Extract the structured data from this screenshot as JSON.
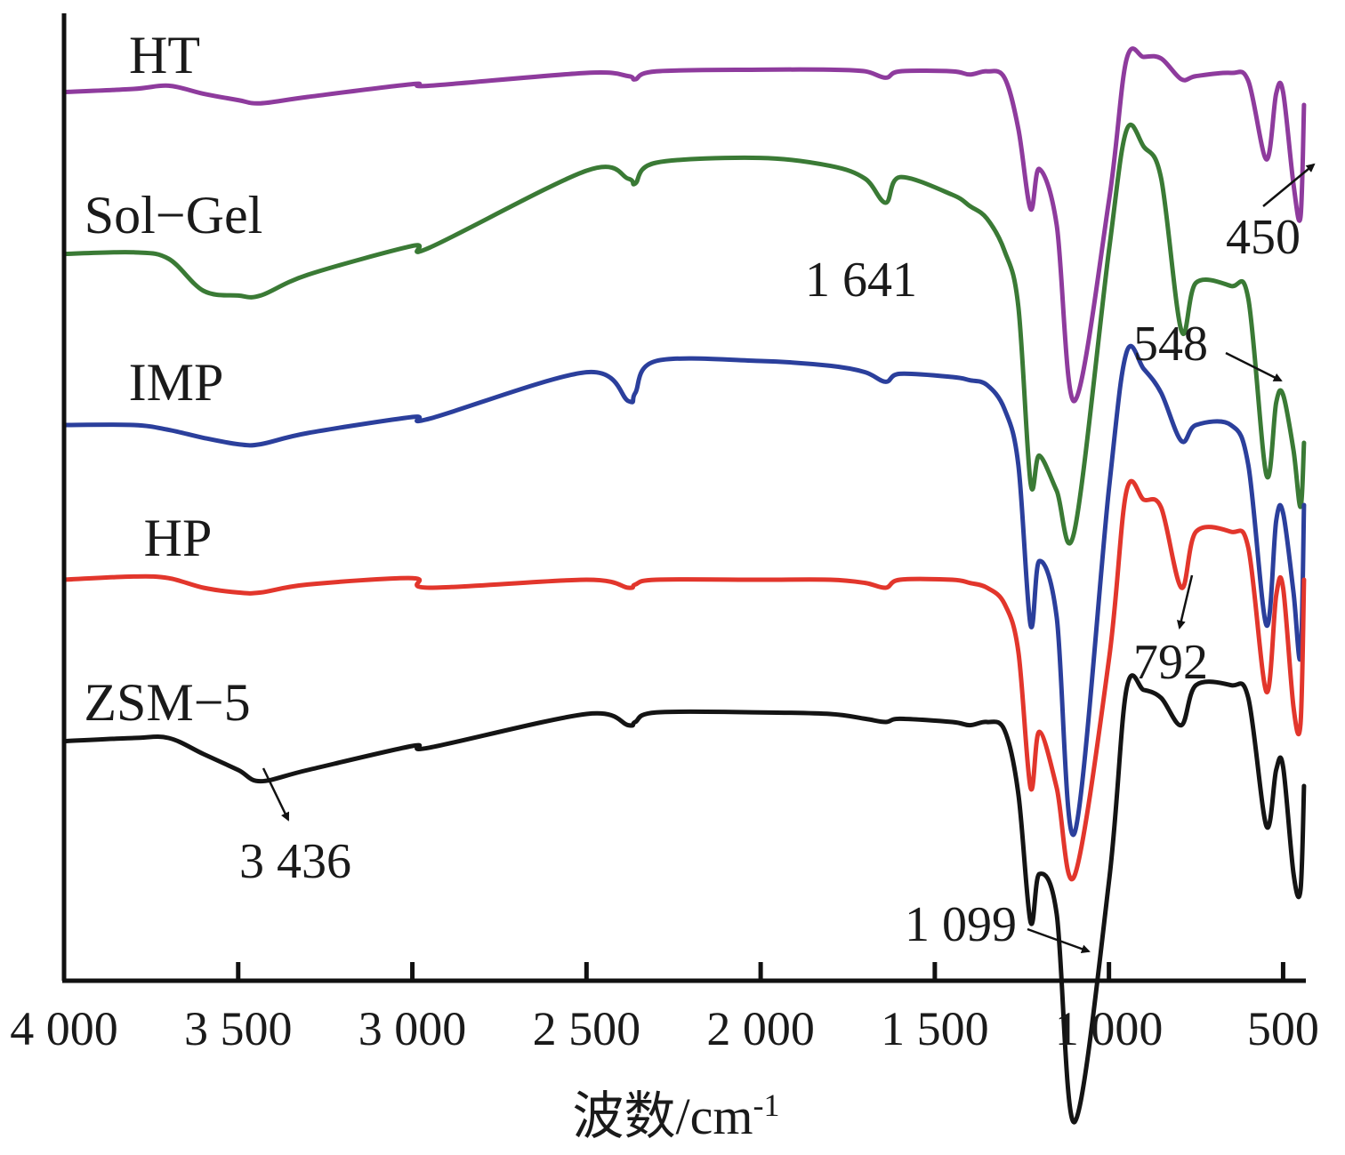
{
  "chart_data": {
    "type": "line",
    "title": "",
    "xlabel": "波数/cm",
    "xlabel_sup": "-1",
    "ylabel": "",
    "x_reversed": true,
    "xlim": [
      4000,
      450
    ],
    "x_ticks": [
      4000,
      3500,
      3000,
      2500,
      2000,
      1500,
      1000,
      500
    ],
    "x_tick_labels": [
      "4 000",
      "3 500",
      "3 000",
      "2 500",
      "2 000",
      "1 500",
      "1 000",
      "500"
    ],
    "y_axis_values_shown": false,
    "grid": false,
    "legend": "labels above each trace",
    "x": [
      4000,
      3800,
      3700,
      3600,
      3500,
      3436,
      3300,
      3000,
      2950,
      2500,
      2380,
      2360,
      2300,
      2000,
      1800,
      1700,
      1641,
      1600,
      1450,
      1400,
      1350,
      1300,
      1260,
      1225,
      1200,
      1150,
      1099,
      1000,
      950,
      900,
      850,
      792,
      750,
      650,
      600,
      548,
      520,
      500,
      470,
      450,
      440
    ],
    "series": [
      {
        "name": "HT",
        "color": "#8e3b9d",
        "values": [
          -0.02,
          0.0,
          0.02,
          -0.03,
          -0.07,
          -0.09,
          -0.05,
          0.03,
          0.02,
          0.1,
          0.08,
          0.06,
          0.11,
          0.12,
          0.12,
          0.11,
          0.07,
          0.11,
          0.11,
          0.09,
          0.11,
          0.07,
          -0.25,
          -0.75,
          -0.5,
          -0.85,
          -1.95,
          -0.7,
          0.18,
          0.2,
          0.19,
          0.06,
          0.08,
          0.1,
          0.05,
          -0.44,
          -0.03,
          -0.02,
          -0.6,
          -0.8,
          -0.1
        ]
      },
      {
        "name": "Sol−Gel",
        "color": "#3a7a35",
        "values": [
          -0.02,
          -0.01,
          -0.05,
          -0.25,
          -0.28,
          -0.28,
          -0.15,
          0.03,
          0.02,
          0.5,
          0.45,
          0.42,
          0.55,
          0.58,
          0.53,
          0.45,
          0.3,
          0.46,
          0.35,
          0.28,
          0.2,
          0.0,
          -0.35,
          -1.45,
          -1.28,
          -1.5,
          -1.75,
          0.0,
          0.75,
          0.65,
          0.45,
          -0.5,
          -0.2,
          -0.22,
          -0.3,
          -1.4,
          -0.95,
          -0.9,
          -1.25,
          -1.6,
          -1.2
        ]
      },
      {
        "name": "IMP",
        "color": "#2b3f9c",
        "values": [
          0.0,
          0.0,
          -0.03,
          -0.08,
          -0.12,
          -0.12,
          -0.05,
          0.05,
          0.04,
          0.33,
          0.15,
          0.2,
          0.4,
          0.4,
          0.37,
          0.33,
          0.27,
          0.32,
          0.3,
          0.28,
          0.25,
          0.1,
          -0.25,
          -1.25,
          -0.85,
          -1.2,
          -2.55,
          -0.4,
          0.45,
          0.35,
          0.2,
          -0.1,
          0.0,
          0.0,
          -0.25,
          -1.25,
          -0.6,
          -0.55,
          -1.05,
          -1.45,
          -0.5
        ]
      },
      {
        "name": "HP",
        "color": "#e2362c",
        "values": [
          0.0,
          0.02,
          0.01,
          -0.05,
          -0.08,
          -0.08,
          -0.03,
          0.01,
          -0.05,
          0.0,
          -0.05,
          -0.03,
          0.0,
          0.0,
          0.0,
          -0.02,
          -0.05,
          0.0,
          0.0,
          -0.02,
          -0.05,
          -0.15,
          -0.45,
          -1.3,
          -0.95,
          -1.3,
          -1.85,
          -0.5,
          0.55,
          0.5,
          0.45,
          -0.05,
          0.3,
          0.3,
          0.2,
          -0.7,
          -0.1,
          -0.05,
          -0.8,
          -0.9,
          0.0
        ]
      },
      {
        "name": "ZSM−5",
        "color": "#141414",
        "values": [
          -0.02,
          0.0,
          0.0,
          -0.1,
          -0.2,
          -0.27,
          -0.2,
          -0.05,
          -0.06,
          0.15,
          0.08,
          0.1,
          0.16,
          0.16,
          0.15,
          0.12,
          0.1,
          0.12,
          0.1,
          0.08,
          0.1,
          0.05,
          -0.35,
          -1.15,
          -0.85,
          -1.1,
          -2.4,
          -0.9,
          0.3,
          0.3,
          0.25,
          0.08,
          0.33,
          0.33,
          0.25,
          -0.55,
          -0.2,
          -0.18,
          -0.85,
          -0.95,
          -0.3
        ]
      }
    ],
    "annotations": [
      {
        "text": "450",
        "x": 450
      },
      {
        "text": "1 641",
        "x": 1641
      },
      {
        "text": "548",
        "x": 548
      },
      {
        "text": "792",
        "x": 792
      },
      {
        "text": "3 436",
        "x": 3436
      },
      {
        "text": "1 099",
        "x": 1099
      }
    ]
  }
}
